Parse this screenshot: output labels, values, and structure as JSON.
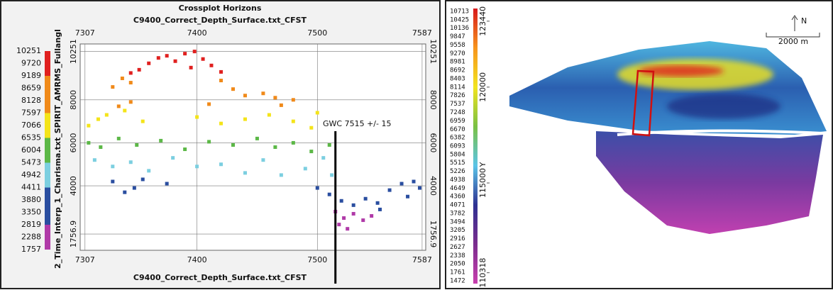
{
  "chart_data": [
    {
      "type": "scatter",
      "title": "Crossplot Horizons",
      "x_label": "C9400_Correct_Depth_Surface.txt_CFST",
      "y_label": "2_Time_Interp_1_Charisma.txt_SPIRIT_AMRMS_Fullangl",
      "annotation": "GWC 7515 +/- 15",
      "gwc_x": 7515,
      "xlim": [
        7303,
        7590
      ],
      "ylim": [
        1000,
        10600
      ],
      "xticks": [
        7307,
        7400,
        7500,
        7587
      ],
      "yticks": [
        1756.9,
        4000,
        6000,
        8000,
        10251
      ],
      "grid": true,
      "colorbar": {
        "ticks": [
          10251,
          9720,
          9189,
          8659,
          8128,
          7597,
          7066,
          6535,
          6004,
          5473,
          4942,
          4411,
          3880,
          3350,
          2819,
          2288,
          1757
        ],
        "colors": [
          "#e0201f",
          "#e0201f",
          "#f08a1a",
          "#f08a1a",
          "#f08a1a",
          "#f4e41a",
          "#f4e41a",
          "#5cb847",
          "#5cb847",
          "#7ccfe0",
          "#7ccfe0",
          "#2a4ea0",
          "#2a4ea0",
          "#2a4ea0",
          "#b03aa8",
          "#b03aa8"
        ]
      },
      "x": [
        7352,
        7360,
        7368,
        7375,
        7382,
        7390,
        7398,
        7405,
        7412,
        7420,
        7345,
        7395,
        7330,
        7338,
        7345,
        7420,
        7430,
        7440,
        7455,
        7465,
        7345,
        7335,
        7410,
        7470,
        7480,
        7310,
        7318,
        7325,
        7340,
        7355,
        7400,
        7420,
        7440,
        7460,
        7480,
        7495,
        7500,
        7310,
        7320,
        7335,
        7350,
        7370,
        7390,
        7410,
        7430,
        7450,
        7465,
        7480,
        7495,
        7510,
        7315,
        7330,
        7345,
        7360,
        7380,
        7400,
        7420,
        7440,
        7455,
        7470,
        7490,
        7505,
        7512,
        7330,
        7340,
        7348,
        7355,
        7375,
        7500,
        7510,
        7520,
        7530,
        7540,
        7550,
        7560,
        7570,
        7575,
        7580,
        7585,
        7515,
        7522,
        7530,
        7538,
        7545,
        7552,
        7525,
        7518
      ],
      "y": [
        9400,
        9700,
        9950,
        10050,
        9800,
        10150,
        10250,
        9900,
        9600,
        9300,
        9250,
        9500,
        8600,
        9000,
        8800,
        8900,
        8500,
        8200,
        8300,
        8100,
        7900,
        7700,
        7800,
        7750,
        8000,
        6800,
        7100,
        7300,
        7500,
        7000,
        7200,
        6900,
        7100,
        7300,
        7000,
        6700,
        7400,
        6000,
        5800,
        6200,
        5900,
        6100,
        5700,
        6050,
        5900,
        6200,
        5800,
        6000,
        5600,
        5900,
        5200,
        4900,
        5100,
        4700,
        5300,
        4900,
        5000,
        4600,
        5200,
        4500,
        4800,
        5300,
        4500,
        4200,
        3700,
        3900,
        4300,
        4100,
        3900,
        3600,
        3300,
        3100,
        3400,
        3200,
        3800,
        4100,
        3500,
        4200,
        3900,
        2800,
        2500,
        2700,
        2400,
        2600,
        2900,
        2000,
        2200
      ]
    },
    {
      "type": "map",
      "y_label": "Y",
      "ylim": [
        109750,
        124100
      ],
      "yticks": [
        110318,
        115000,
        120000,
        123440
      ],
      "north": "N",
      "scale": "2000 m",
      "colorbar": {
        "ticks": [
          10713,
          10425,
          10136,
          9847,
          9558,
          9270,
          8981,
          8692,
          8403,
          8114,
          7826,
          7537,
          7248,
          6959,
          6670,
          6382,
          6093,
          5804,
          5515,
          5226,
          4938,
          4649,
          4360,
          4071,
          3782,
          3494,
          3205,
          2916,
          2627,
          2338,
          2050,
          1761,
          1472
        ],
        "colors": [
          "#d7191c",
          "#f7941d",
          "#f2e41f",
          "#7ac143",
          "#5bc4e8",
          "#2e3192",
          "#7b2d8e",
          "#c83fae"
        ]
      }
    }
  ]
}
